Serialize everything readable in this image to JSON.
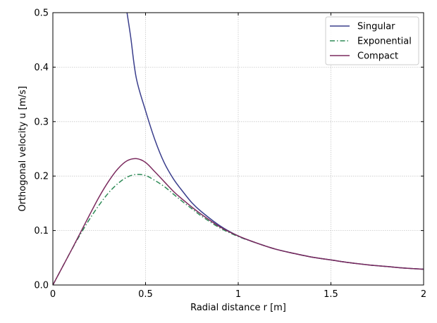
{
  "chart_data": {
    "type": "line",
    "xlabel": "Radial distance r [m]",
    "ylabel": "Orthogonal velocity u [m/s]",
    "xlim": [
      0,
      2
    ],
    "ylim": [
      0,
      0.5
    ],
    "xticks": [
      0,
      0.5,
      1,
      1.5,
      2
    ],
    "xtick_labels": [
      "0",
      "0.5",
      "1",
      "1.5",
      "2"
    ],
    "yticks": [
      0,
      0.1,
      0.2,
      0.3,
      0.4,
      0.5
    ],
    "ytick_labels": [
      "0.0",
      "0.1",
      "0.2",
      "0.3",
      "0.4",
      "0.5"
    ],
    "grid": true,
    "legend_position": "top-right",
    "series": [
      {
        "name": "Singular",
        "color": "#3a3e8c",
        "dash": "solid",
        "x": [
          0.4,
          0.42,
          0.45,
          0.5,
          0.55,
          0.6,
          0.65,
          0.7,
          0.75,
          0.8,
          0.9,
          1.0,
          1.1,
          1.2,
          1.3,
          1.4,
          1.5,
          1.6,
          1.7,
          1.8,
          1.9,
          2.0
        ],
        "y": [
          0.5,
          0.455,
          0.38,
          0.32,
          0.267,
          0.225,
          0.195,
          0.172,
          0.151,
          0.135,
          0.109,
          0.09,
          0.077,
          0.066,
          0.058,
          0.051,
          0.046,
          0.041,
          0.037,
          0.034,
          0.031,
          0.029
        ]
      },
      {
        "name": "Exponential",
        "color": "#2e8b57",
        "dash": "dashdot",
        "x": [
          0,
          0.05,
          0.1,
          0.15,
          0.2,
          0.25,
          0.3,
          0.35,
          0.4,
          0.45,
          0.5,
          0.55,
          0.6,
          0.65,
          0.7,
          0.75,
          0.8,
          0.9,
          1.0,
          1.1,
          1.2,
          1.3,
          1.4,
          1.5,
          1.6,
          1.7,
          1.8,
          1.9,
          2.0
        ],
        "y": [
          0,
          0.032,
          0.064,
          0.094,
          0.122,
          0.147,
          0.169,
          0.186,
          0.198,
          0.203,
          0.201,
          0.192,
          0.181,
          0.167,
          0.153,
          0.14,
          0.127,
          0.105,
          0.089,
          0.077,
          0.066,
          0.058,
          0.051,
          0.046,
          0.041,
          0.037,
          0.034,
          0.031,
          0.029
        ]
      },
      {
        "name": "Compact",
        "color": "#7b2a5e",
        "dash": "solid",
        "x": [
          0,
          0.05,
          0.1,
          0.15,
          0.2,
          0.25,
          0.3,
          0.35,
          0.4,
          0.45,
          0.5,
          0.55,
          0.6,
          0.65,
          0.7,
          0.75,
          0.8,
          0.9,
          1.0,
          1.1,
          1.2,
          1.3,
          1.4,
          1.5,
          1.6,
          1.7,
          1.8,
          1.9,
          2.0
        ],
        "y": [
          0,
          0.032,
          0.064,
          0.097,
          0.13,
          0.162,
          0.19,
          0.213,
          0.228,
          0.232,
          0.225,
          0.208,
          0.19,
          0.172,
          0.157,
          0.143,
          0.13,
          0.107,
          0.09,
          0.077,
          0.066,
          0.058,
          0.051,
          0.046,
          0.041,
          0.037,
          0.034,
          0.031,
          0.029
        ]
      }
    ]
  }
}
